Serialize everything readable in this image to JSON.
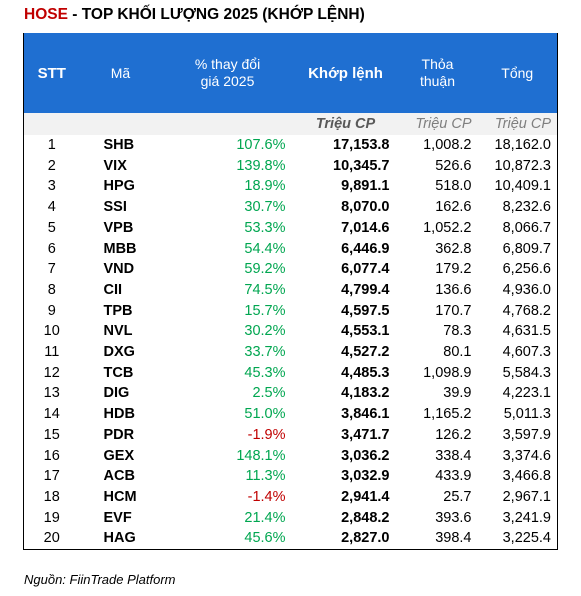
{
  "title": {
    "prefix": "HOSE",
    "rest": " - TOP KHỐI LƯỢNG 2025 (KHỚP LỆNH)"
  },
  "headers": {
    "stt": "STT",
    "ma": "Mã",
    "pct_line1": "% thay đổi",
    "pct_line2": "giá 2025",
    "khop": "Khớp lệnh",
    "tt_line1": "Thỏa",
    "tt_line2": "thuận",
    "tong": "Tổng"
  },
  "units": {
    "khop": "Triệu CP",
    "thoa_thuan": "Triệu CP",
    "tong": "Triệu CP"
  },
  "rows": [
    {
      "stt": "1",
      "ma": "SHB",
      "pct": "107.6%",
      "dir": "pos",
      "khop": "17,153.8",
      "tt": "1,008.2",
      "tong": "18,162.0"
    },
    {
      "stt": "2",
      "ma": "VIX",
      "pct": "139.8%",
      "dir": "pos",
      "khop": "10,345.7",
      "tt": "526.6",
      "tong": "10,872.3"
    },
    {
      "stt": "3",
      "ma": "HPG",
      "pct": "18.9%",
      "dir": "pos",
      "khop": "9,891.1",
      "tt": "518.0",
      "tong": "10,409.1"
    },
    {
      "stt": "4",
      "ma": "SSI",
      "pct": "30.7%",
      "dir": "pos",
      "khop": "8,070.0",
      "tt": "162.6",
      "tong": "8,232.6"
    },
    {
      "stt": "5",
      "ma": "VPB",
      "pct": "53.3%",
      "dir": "pos",
      "khop": "7,014.6",
      "tt": "1,052.2",
      "tong": "8,066.7"
    },
    {
      "stt": "6",
      "ma": "MBB",
      "pct": "54.4%",
      "dir": "pos",
      "khop": "6,446.9",
      "tt": "362.8",
      "tong": "6,809.7"
    },
    {
      "stt": "7",
      "ma": "VND",
      "pct": "59.2%",
      "dir": "pos",
      "khop": "6,077.4",
      "tt": "179.2",
      "tong": "6,256.6"
    },
    {
      "stt": "8",
      "ma": "CII",
      "pct": "74.5%",
      "dir": "pos",
      "khop": "4,799.4",
      "tt": "136.6",
      "tong": "4,936.0"
    },
    {
      "stt": "9",
      "ma": "TPB",
      "pct": "15.7%",
      "dir": "pos",
      "khop": "4,597.5",
      "tt": "170.7",
      "tong": "4,768.2"
    },
    {
      "stt": "10",
      "ma": "NVL",
      "pct": "30.2%",
      "dir": "pos",
      "khop": "4,553.1",
      "tt": "78.3",
      "tong": "4,631.5"
    },
    {
      "stt": "11",
      "ma": "DXG",
      "pct": "33.7%",
      "dir": "pos",
      "khop": "4,527.2",
      "tt": "80.1",
      "tong": "4,607.3"
    },
    {
      "stt": "12",
      "ma": "TCB",
      "pct": "45.3%",
      "dir": "pos",
      "khop": "4,485.3",
      "tt": "1,098.9",
      "tong": "5,584.3"
    },
    {
      "stt": "13",
      "ma": "DIG",
      "pct": "2.5%",
      "dir": "pos",
      "khop": "4,183.2",
      "tt": "39.9",
      "tong": "4,223.1"
    },
    {
      "stt": "14",
      "ma": "HDB",
      "pct": "51.0%",
      "dir": "pos",
      "khop": "3,846.1",
      "tt": "1,165.2",
      "tong": "5,011.3"
    },
    {
      "stt": "15",
      "ma": "PDR",
      "pct": "-1.9%",
      "dir": "neg",
      "khop": "3,471.7",
      "tt": "126.2",
      "tong": "3,597.9"
    },
    {
      "stt": "16",
      "ma": "GEX",
      "pct": "148.1%",
      "dir": "pos",
      "khop": "3,036.2",
      "tt": "338.4",
      "tong": "3,374.6"
    },
    {
      "stt": "17",
      "ma": "ACB",
      "pct": "11.3%",
      "dir": "pos",
      "khop": "3,032.9",
      "tt": "433.9",
      "tong": "3,466.8"
    },
    {
      "stt": "18",
      "ma": "HCM",
      "pct": "-1.4%",
      "dir": "neg",
      "khop": "2,941.4",
      "tt": "25.7",
      "tong": "2,967.1"
    },
    {
      "stt": "19",
      "ma": "EVF",
      "pct": "21.4%",
      "dir": "pos",
      "khop": "2,848.2",
      "tt": "393.6",
      "tong": "3,241.9"
    },
    {
      "stt": "20",
      "ma": "HAG",
      "pct": "45.6%",
      "dir": "pos",
      "khop": "2,827.0",
      "tt": "398.4",
      "tong": "3,225.4"
    }
  ],
  "colors": {
    "header_bg": "#1f6fd1",
    "positive": "#00a650",
    "negative": "#c00000",
    "title_accent": "#c00000"
  },
  "source": "Nguồn: FiinTrade Platform"
}
